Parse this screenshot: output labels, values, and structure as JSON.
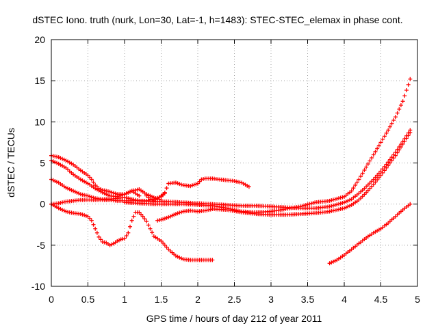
{
  "chart_data": {
    "type": "scatter",
    "title": "dSTEC Iono. truth (nurk, Lon=30, Lat=-1, h=1483): STEC-STEC_elemax in phase cont.",
    "xlabel": "GPS time / hours of day 212 of year 2011",
    "ylabel": "dSTEC  / TECUs",
    "xlim": [
      0,
      5
    ],
    "ylim": [
      -10,
      20
    ],
    "xticks": [
      0,
      0.5,
      1,
      1.5,
      2,
      2.5,
      3,
      3.5,
      4,
      4.5,
      5
    ],
    "xtick_labels": [
      "0",
      "0.5",
      "1",
      "1.5",
      "2",
      "2.5",
      "3",
      "3.5",
      "4",
      "4.5",
      "5"
    ],
    "yticks": [
      -10,
      -5,
      0,
      5,
      10,
      15,
      20
    ],
    "ytick_labels": [
      "-10",
      "-5",
      "0",
      "5",
      "10",
      "15",
      "20"
    ],
    "grid": true,
    "marker": "plus",
    "color": "#ff0000",
    "series": [
      {
        "points": [
          [
            0.0,
            5.9
          ],
          [
            0.1,
            5.7
          ],
          [
            0.2,
            5.3
          ],
          [
            0.3,
            4.8
          ],
          [
            0.4,
            4.1
          ],
          [
            0.5,
            3.5
          ],
          [
            0.55,
            3.0
          ],
          [
            0.6,
            2.3
          ],
          [
            0.65,
            1.9
          ],
          [
            0.7,
            1.7
          ],
          [
            0.8,
            1.5
          ],
          [
            0.9,
            1.2
          ],
          [
            1.0,
            1.2
          ],
          [
            1.1,
            1.6
          ],
          [
            1.15,
            1.3
          ],
          [
            1.2,
            1.0
          ]
        ]
      },
      {
        "points": [
          [
            0.0,
            5.3
          ],
          [
            0.1,
            4.9
          ],
          [
            0.2,
            4.4
          ],
          [
            0.3,
            3.6
          ],
          [
            0.4,
            3.0
          ],
          [
            0.5,
            2.5
          ],
          [
            0.6,
            1.9
          ],
          [
            0.7,
            1.4
          ],
          [
            0.8,
            1.0
          ],
          [
            0.9,
            0.9
          ],
          [
            1.0,
            1.2
          ],
          [
            1.1,
            1.6
          ],
          [
            1.2,
            1.8
          ],
          [
            1.3,
            1.2
          ],
          [
            1.4,
            0.8
          ],
          [
            1.5,
            0.5
          ]
        ]
      },
      {
        "points": [
          [
            0.0,
            3.0
          ],
          [
            0.1,
            2.6
          ],
          [
            0.2,
            2.0
          ],
          [
            0.3,
            1.6
          ],
          [
            0.4,
            1.2
          ],
          [
            0.5,
            1.0
          ],
          [
            0.6,
            0.7
          ],
          [
            0.7,
            0.6
          ],
          [
            0.8,
            0.6
          ],
          [
            0.9,
            0.7
          ],
          [
            1.0,
            0.8
          ],
          [
            1.1,
            0.6
          ],
          [
            1.2,
            0.4
          ],
          [
            1.3,
            0.4
          ],
          [
            1.4,
            0.6
          ],
          [
            1.5,
            0.9
          ],
          [
            1.55,
            1.3
          ]
        ]
      },
      {
        "points": [
          [
            0.0,
            0.0
          ],
          [
            0.1,
            0.1
          ],
          [
            0.2,
            0.3
          ],
          [
            0.3,
            0.4
          ],
          [
            0.4,
            0.5
          ],
          [
            0.5,
            0.5
          ],
          [
            0.6,
            0.5
          ],
          [
            0.7,
            0.5
          ],
          [
            0.8,
            0.5
          ],
          [
            0.9,
            0.4
          ],
          [
            1.0,
            0.4
          ],
          [
            1.2,
            0.4
          ],
          [
            1.4,
            0.3
          ],
          [
            1.6,
            0.3
          ],
          [
            1.8,
            0.2
          ],
          [
            2.0,
            0.1
          ],
          [
            2.2,
            0.0
          ],
          [
            2.4,
            -0.1
          ],
          [
            2.6,
            -0.2
          ],
          [
            2.8,
            -0.2
          ],
          [
            3.0,
            -0.3
          ],
          [
            3.2,
            -0.4
          ],
          [
            3.4,
            -0.5
          ],
          [
            3.6,
            -0.5
          ],
          [
            3.8,
            -0.3
          ],
          [
            4.0,
            0.2
          ],
          [
            4.1,
            0.6
          ],
          [
            4.2,
            1.3
          ],
          [
            4.3,
            2.1
          ],
          [
            4.4,
            3.0
          ],
          [
            4.5,
            4.0
          ],
          [
            4.6,
            5.1
          ],
          [
            4.7,
            6.3
          ],
          [
            4.8,
            7.6
          ],
          [
            4.9,
            9.0
          ]
        ]
      },
      {
        "points": [
          [
            0.0,
            0.0
          ],
          [
            0.1,
            -0.5
          ],
          [
            0.2,
            -0.9
          ],
          [
            0.3,
            -1.1
          ],
          [
            0.4,
            -1.2
          ],
          [
            0.5,
            -1.5
          ],
          [
            0.55,
            -2.0
          ],
          [
            0.6,
            -3.0
          ],
          [
            0.65,
            -4.0
          ],
          [
            0.7,
            -4.6
          ],
          [
            0.75,
            -4.7
          ],
          [
            0.8,
            -5.0
          ],
          [
            0.85,
            -4.8
          ],
          [
            0.9,
            -4.5
          ],
          [
            0.95,
            -4.3
          ],
          [
            1.0,
            -4.2
          ],
          [
            1.05,
            -3.5
          ],
          [
            1.1,
            -2.0
          ],
          [
            1.15,
            -1.0
          ],
          [
            1.2,
            -1.0
          ],
          [
            1.25,
            -1.5
          ],
          [
            1.3,
            -2.1
          ],
          [
            1.35,
            -3.0
          ],
          [
            1.4,
            -3.9
          ],
          [
            1.5,
            -4.5
          ],
          [
            1.6,
            -5.5
          ],
          [
            1.7,
            -6.3
          ],
          [
            1.8,
            -6.7
          ],
          [
            1.9,
            -6.8
          ],
          [
            2.0,
            -6.8
          ],
          [
            2.1,
            -6.8
          ],
          [
            2.2,
            -6.8
          ]
        ]
      },
      {
        "points": [
          [
            1.45,
            -2.0
          ],
          [
            1.5,
            -1.9
          ],
          [
            1.6,
            -1.6
          ],
          [
            1.7,
            -1.2
          ],
          [
            1.8,
            -0.9
          ],
          [
            1.9,
            -0.8
          ],
          [
            2.0,
            -0.9
          ],
          [
            2.1,
            -0.8
          ],
          [
            2.2,
            -0.6
          ],
          [
            2.4,
            -0.7
          ],
          [
            2.6,
            -1.0
          ],
          [
            2.8,
            -1.2
          ],
          [
            3.0,
            -1.3
          ],
          [
            3.2,
            -1.3
          ],
          [
            3.4,
            -1.2
          ],
          [
            3.6,
            -1.1
          ],
          [
            3.8,
            -0.9
          ],
          [
            4.0,
            -0.5
          ],
          [
            4.1,
            -0.1
          ],
          [
            4.2,
            0.5
          ],
          [
            4.3,
            1.4
          ],
          [
            4.4,
            2.4
          ],
          [
            4.5,
            3.5
          ],
          [
            4.6,
            4.7
          ],
          [
            4.7,
            5.9
          ],
          [
            4.8,
            7.3
          ],
          [
            4.9,
            8.7
          ]
        ]
      },
      {
        "points": [
          [
            1.3,
            1.0
          ],
          [
            1.35,
            0.6
          ],
          [
            1.4,
            0.4
          ],
          [
            1.5,
            1.0
          ],
          [
            1.55,
            1.4
          ],
          [
            1.6,
            2.5
          ],
          [
            1.7,
            2.6
          ],
          [
            1.8,
            2.3
          ],
          [
            1.9,
            2.2
          ],
          [
            2.0,
            2.5
          ],
          [
            2.05,
            3.0
          ],
          [
            2.1,
            3.1
          ],
          [
            2.2,
            3.1
          ],
          [
            2.3,
            3.0
          ],
          [
            2.4,
            2.9
          ],
          [
            2.5,
            2.8
          ],
          [
            2.6,
            2.6
          ],
          [
            2.7,
            2.1
          ]
        ]
      },
      {
        "points": [
          [
            1.0,
            0.2
          ],
          [
            1.2,
            0.1
          ],
          [
            1.4,
            0.0
          ],
          [
            1.6,
            0.0
          ],
          [
            1.8,
            0.0
          ],
          [
            2.0,
            -0.1
          ],
          [
            2.2,
            -0.2
          ],
          [
            2.4,
            -0.5
          ],
          [
            2.6,
            -0.9
          ],
          [
            2.8,
            -1.0
          ],
          [
            3.0,
            -0.9
          ],
          [
            3.2,
            -0.6
          ],
          [
            3.4,
            -0.3
          ],
          [
            3.6,
            0.2
          ],
          [
            3.8,
            0.4
          ],
          [
            4.0,
            0.9
          ],
          [
            4.1,
            1.6
          ],
          [
            4.2,
            3.0
          ],
          [
            4.3,
            4.5
          ],
          [
            4.4,
            6.0
          ],
          [
            4.5,
            7.5
          ],
          [
            4.6,
            9.0
          ],
          [
            4.7,
            10.6
          ],
          [
            4.8,
            12.5
          ],
          [
            4.9,
            15.2
          ]
        ]
      },
      {
        "points": [
          [
            3.8,
            -7.2
          ],
          [
            3.9,
            -6.8
          ],
          [
            4.0,
            -6.2
          ],
          [
            4.1,
            -5.5
          ],
          [
            4.2,
            -4.8
          ],
          [
            4.3,
            -4.1
          ],
          [
            4.4,
            -3.5
          ],
          [
            4.5,
            -3.0
          ],
          [
            4.6,
            -2.3
          ],
          [
            4.7,
            -1.5
          ],
          [
            4.8,
            -0.7
          ],
          [
            4.9,
            0.0
          ]
        ]
      }
    ]
  }
}
